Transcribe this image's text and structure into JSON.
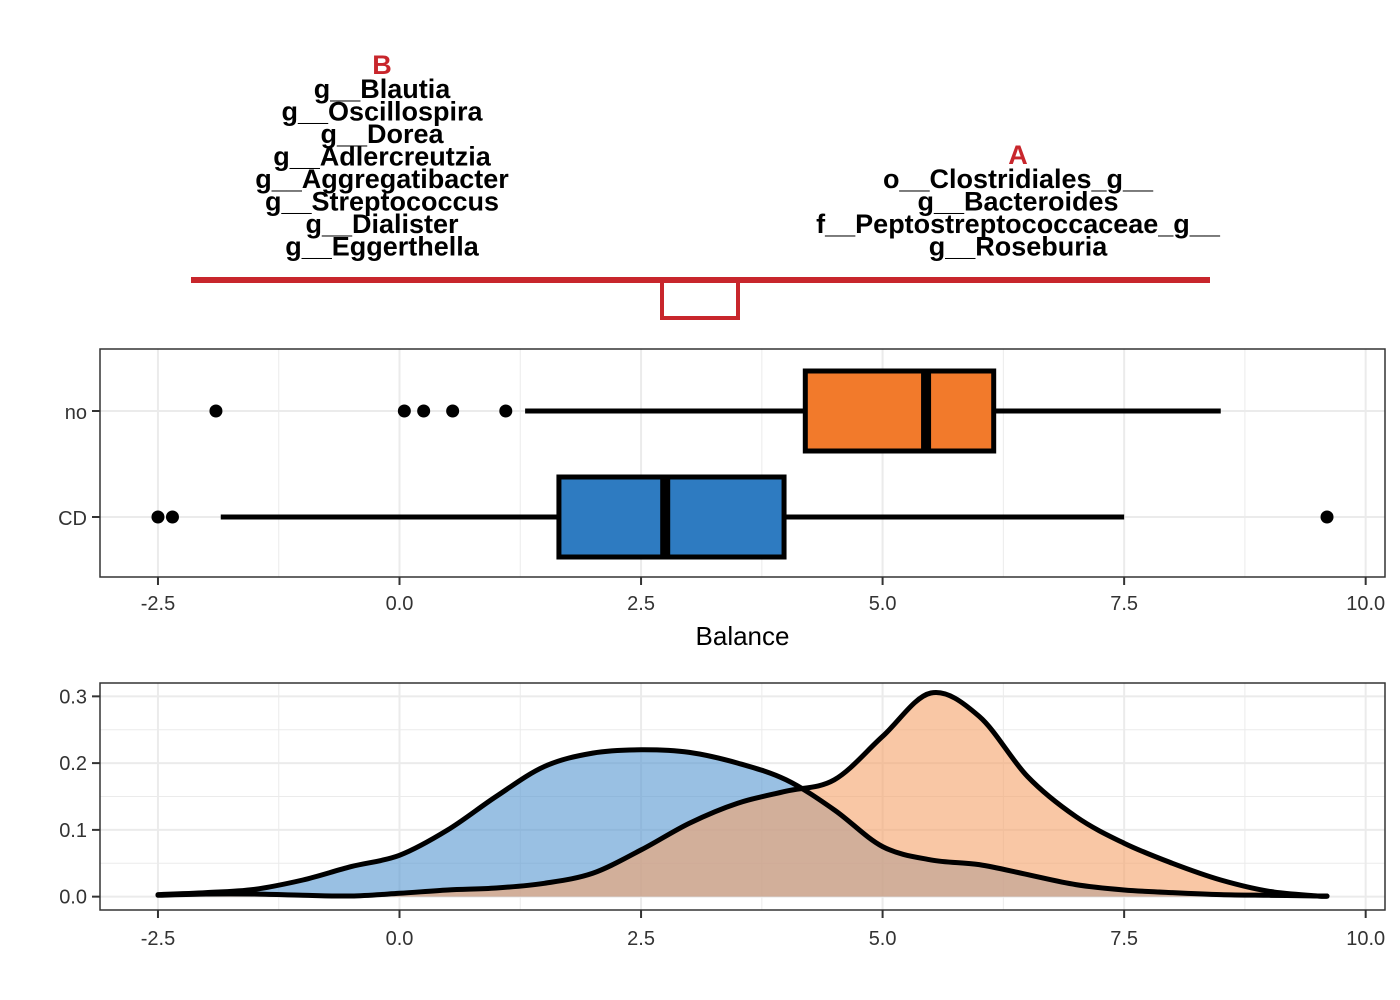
{
  "colors": {
    "balance_line": "#c8262c",
    "no": "#f27a2b",
    "CD": "#2e7bc1",
    "outline": "#000000",
    "grid": "#ebebeb",
    "panel_border": "#333333",
    "no_density": "#f5a56e",
    "CD_density": "#5b99d2"
  },
  "chart_data": [
    {
      "type": "dendrogram",
      "groups": [
        {
          "label": "B",
          "taxa": [
            "g__Blautia",
            "g__Oscillospira",
            "g__Dorea",
            "g__Adlercreutzia",
            "g__Aggregatibacter",
            "g__Streptococcus",
            "g__Dialister",
            "g__Eggerthella"
          ]
        },
        {
          "label": "A",
          "taxa": [
            "o__Clostridiales_g__",
            "g__Bacteroides",
            "f__Peptostreptococcaceae_g__",
            "g__Roseburia"
          ]
        }
      ]
    },
    {
      "type": "boxplot",
      "xlabel": "Balance",
      "xlim": [
        -3.1,
        10.2
      ],
      "xticks": [
        "-2.5",
        "0.0",
        "2.5",
        "5.0",
        "7.5",
        "10.0"
      ],
      "xtick_values": [
        -2.5,
        0,
        2.5,
        5,
        7.5,
        10
      ],
      "categories": [
        "no",
        "CD"
      ],
      "series": [
        {
          "name": "no",
          "whisker_low": 1.3,
          "q1": 4.2,
          "median": 5.45,
          "q3": 6.15,
          "whisker_high": 8.5,
          "outliers": [
            -1.9,
            0.05,
            0.25,
            0.55,
            1.1
          ]
        },
        {
          "name": "CD",
          "whisker_low": -1.85,
          "q1": 1.65,
          "median": 2.75,
          "q3": 3.98,
          "whisker_high": 7.5,
          "outliers": [
            -2.5,
            -2.35,
            9.6
          ]
        }
      ]
    },
    {
      "type": "area",
      "xlim": [
        -3.1,
        10.2
      ],
      "ylim": [
        -0.02,
        0.32
      ],
      "xticks": [
        "-2.5",
        "0.0",
        "2.5",
        "5.0",
        "7.5",
        "10.0"
      ],
      "xtick_values": [
        -2.5,
        0,
        2.5,
        5,
        7.5,
        10
      ],
      "yticks": [
        "0.0",
        "0.1",
        "0.2",
        "0.3"
      ],
      "ytick_values": [
        0,
        0.1,
        0.2,
        0.3
      ],
      "x": [
        -2.5,
        -2.0,
        -1.5,
        -1.0,
        -0.5,
        0.0,
        0.5,
        1.0,
        1.5,
        2.0,
        2.5,
        3.0,
        3.5,
        4.0,
        4.5,
        5.0,
        5.5,
        6.0,
        6.5,
        7.0,
        7.5,
        8.0,
        8.5,
        9.0,
        9.5,
        9.6
      ],
      "series": [
        {
          "name": "CD",
          "values": [
            0.003,
            0.006,
            0.011,
            0.025,
            0.045,
            0.062,
            0.1,
            0.15,
            0.195,
            0.215,
            0.22,
            0.216,
            0.2,
            0.175,
            0.13,
            0.075,
            0.055,
            0.048,
            0.033,
            0.018,
            0.01,
            0.006,
            0.003,
            0.002,
            0.001,
            0.001
          ]
        },
        {
          "name": "no",
          "values": [
            0.002,
            0.004,
            0.004,
            0.002,
            0.001,
            0.005,
            0.01,
            0.013,
            0.02,
            0.035,
            0.07,
            0.11,
            0.14,
            0.158,
            0.175,
            0.24,
            0.305,
            0.27,
            0.18,
            0.12,
            0.08,
            0.05,
            0.025,
            0.008,
            0.001,
            0.0005
          ]
        }
      ]
    }
  ]
}
